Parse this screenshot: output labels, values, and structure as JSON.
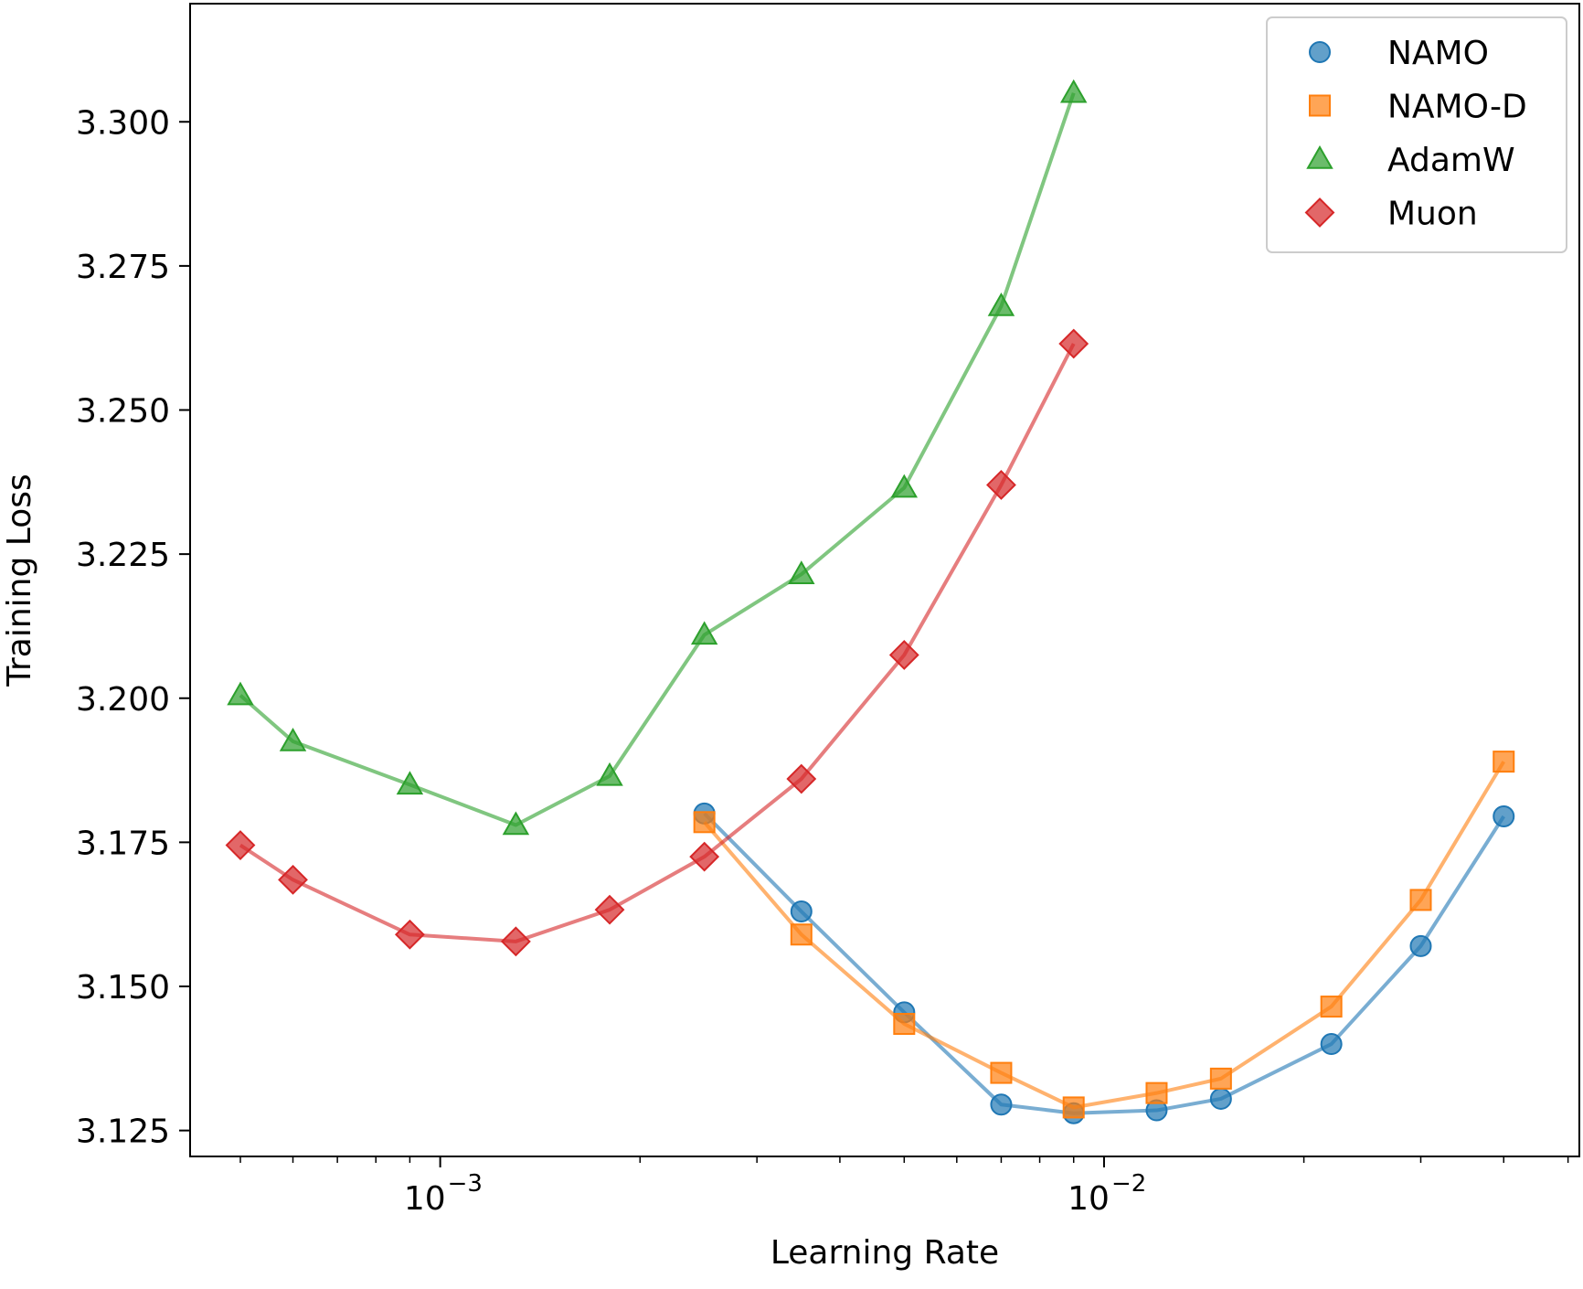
{
  "chart_data": {
    "type": "line",
    "title": "",
    "xlabel": "Learning Rate",
    "ylabel": "Training Loss",
    "xscale": "log",
    "xlim": [
      0.00042,
      0.052
    ],
    "ylim": [
      3.1205,
      3.3205
    ],
    "xticks": [
      {
        "value": 0.001,
        "base": "10",
        "exp": "−3"
      },
      {
        "value": 0.01,
        "base": "10",
        "exp": "−2"
      }
    ],
    "yticks": [
      {
        "value": 3.125,
        "label": "3.125"
      },
      {
        "value": 3.15,
        "label": "3.150"
      },
      {
        "value": 3.175,
        "label": "3.175"
      },
      {
        "value": 3.2,
        "label": "3.200"
      },
      {
        "value": 3.225,
        "label": "3.225"
      },
      {
        "value": 3.25,
        "label": "3.250"
      },
      {
        "value": 3.275,
        "label": "3.275"
      },
      {
        "value": 3.3,
        "label": "3.300"
      }
    ],
    "legend_position": "top-right",
    "series": [
      {
        "name": "NAMO",
        "marker": "circle",
        "color": "#1f77b4",
        "x": [
          0.0025,
          0.0035,
          0.005,
          0.007,
          0.009,
          0.012,
          0.015,
          0.022,
          0.03,
          0.04
        ],
        "y": [
          3.18,
          3.163,
          3.1455,
          3.1295,
          3.128,
          3.1285,
          3.1305,
          3.14,
          3.157,
          3.1795
        ]
      },
      {
        "name": "NAMO-D",
        "marker": "square",
        "color": "#ff7f0e",
        "x": [
          0.0025,
          0.0035,
          0.005,
          0.007,
          0.009,
          0.012,
          0.015,
          0.022,
          0.03,
          0.04
        ],
        "y": [
          3.1785,
          3.159,
          3.1435,
          3.135,
          3.129,
          3.1315,
          3.134,
          3.1465,
          3.165,
          3.189
        ]
      },
      {
        "name": "AdamW",
        "marker": "triangle",
        "color": "#2ca02c",
        "x": [
          0.0005,
          0.0006,
          0.0009,
          0.0013,
          0.0018,
          0.0025,
          0.0035,
          0.005,
          0.007,
          0.009
        ],
        "y": [
          3.2005,
          3.1925,
          3.185,
          3.178,
          3.1865,
          3.211,
          3.2215,
          3.2365,
          3.268,
          3.305
        ]
      },
      {
        "name": "Muon",
        "marker": "diamond",
        "color": "#d62728",
        "x": [
          0.0005,
          0.0006,
          0.0009,
          0.0013,
          0.0018,
          0.0025,
          0.0035,
          0.005,
          0.007,
          0.009
        ],
        "y": [
          3.1745,
          3.1685,
          3.159,
          3.1578,
          3.1633,
          3.1725,
          3.186,
          3.2075,
          3.237,
          3.2615
        ]
      }
    ]
  }
}
